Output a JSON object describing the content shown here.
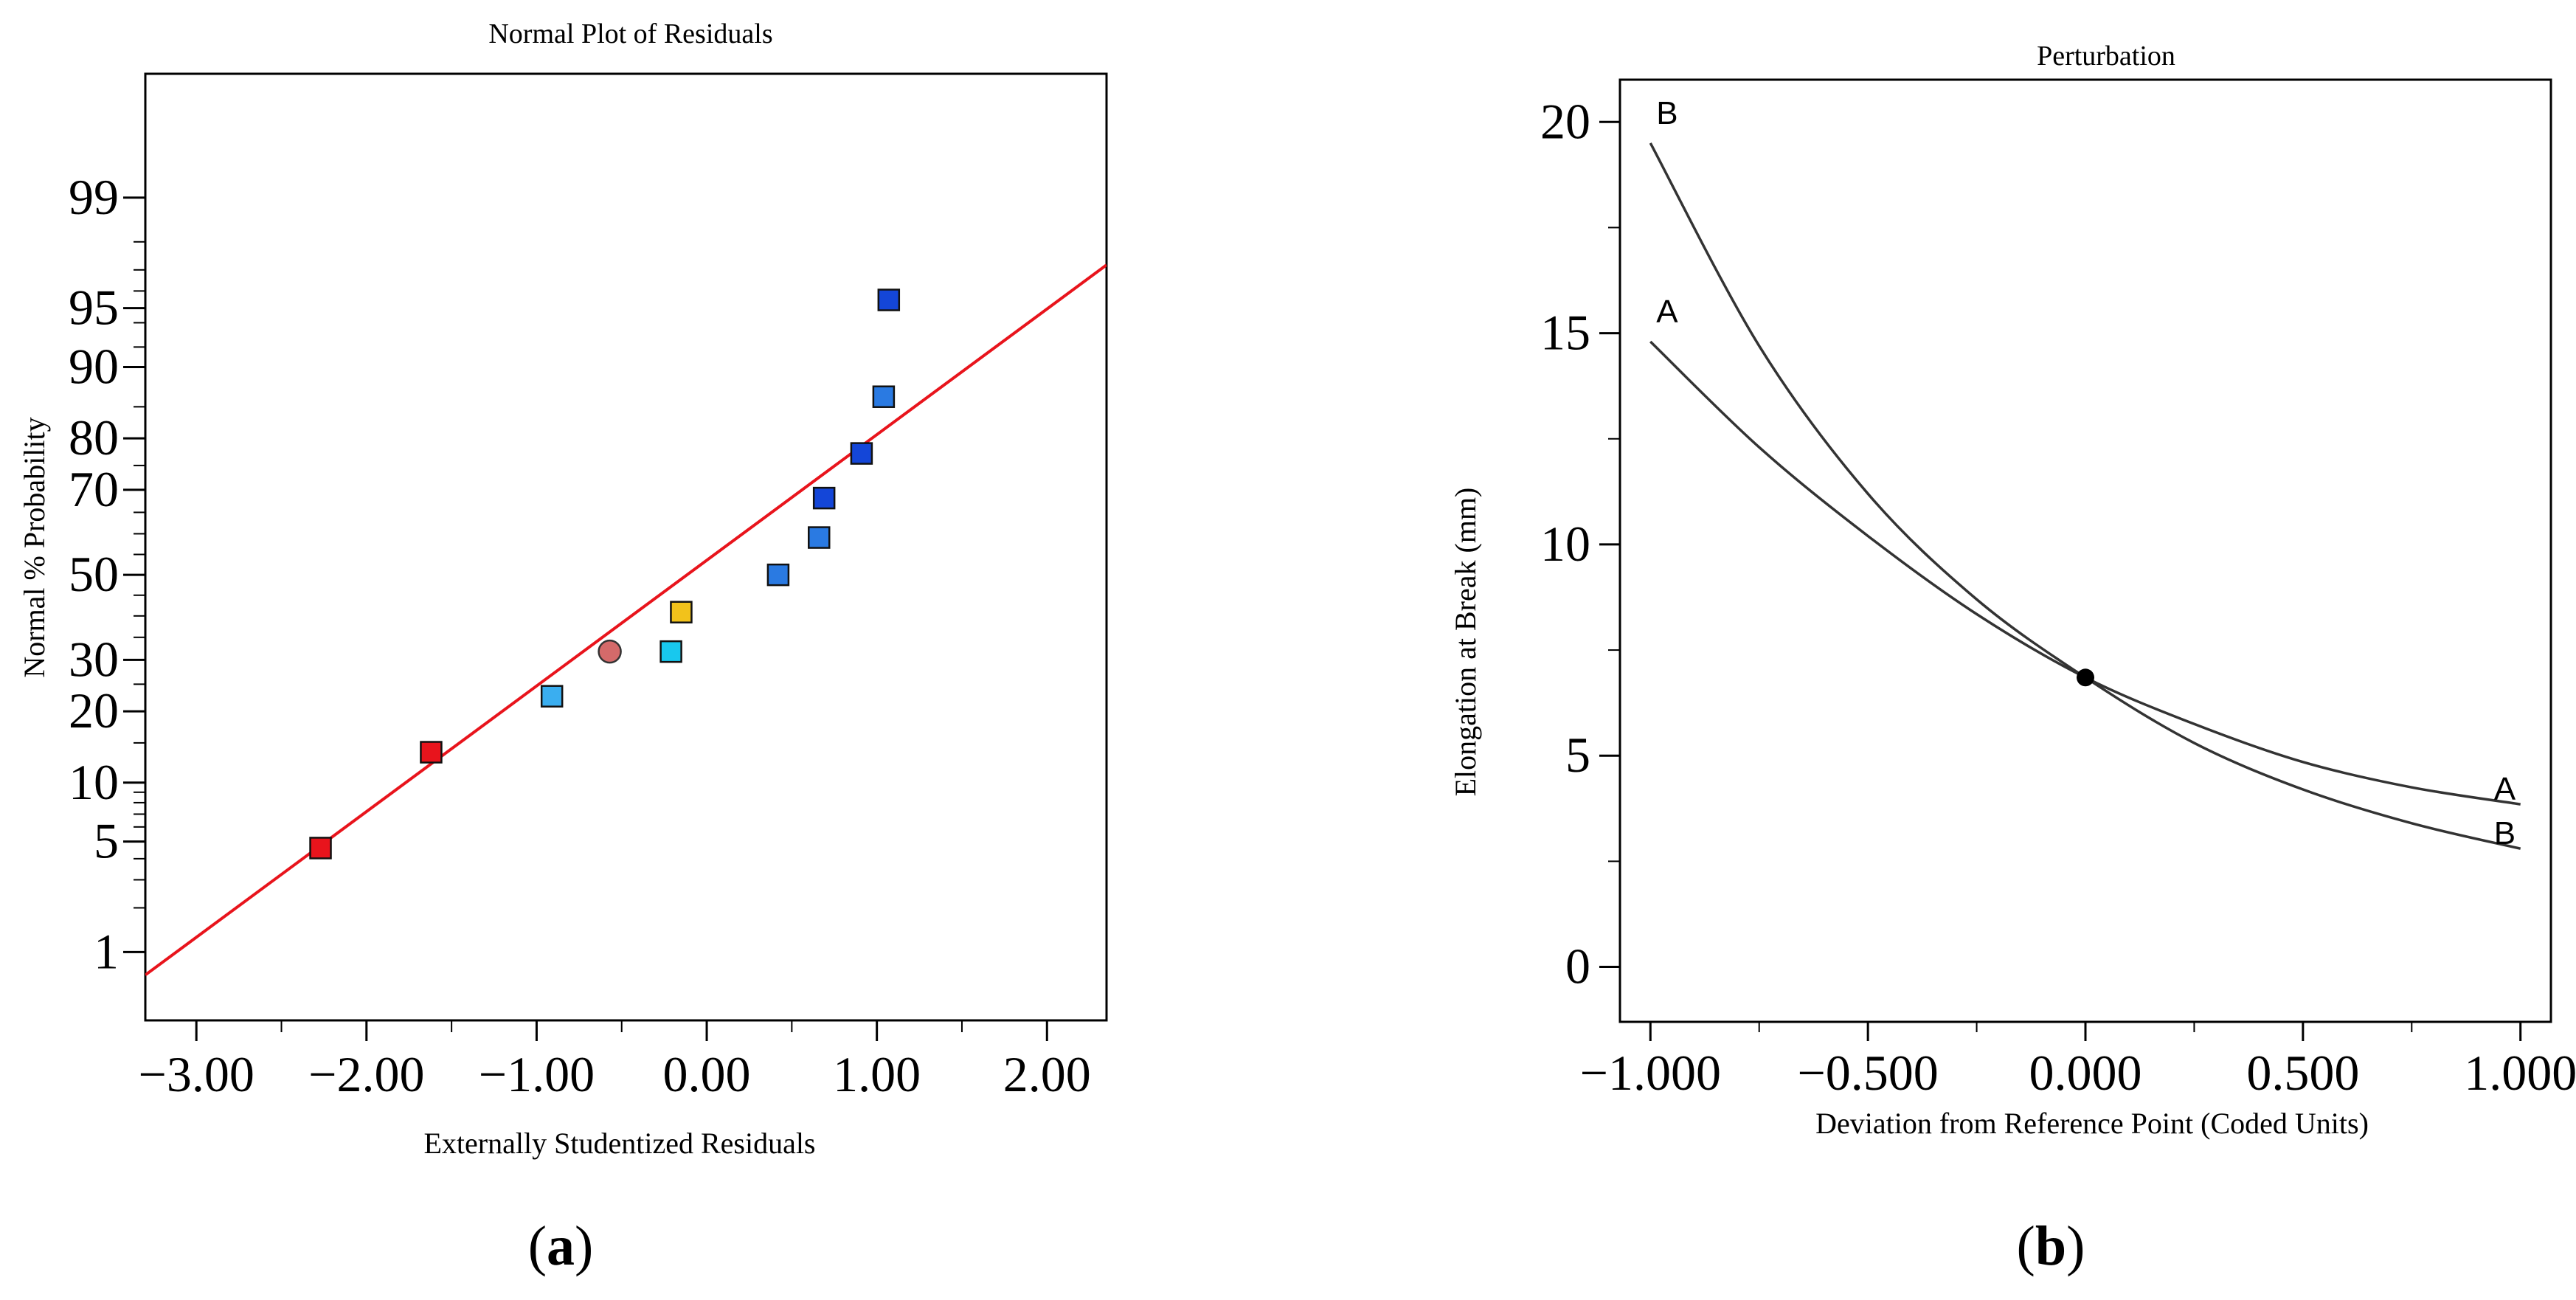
{
  "chart_data": [
    {
      "type": "scatter",
      "title": "Normal Plot of Residuals",
      "xlabel": "Externally Studentized Residuals",
      "ylabel": "Normal % Probability",
      "panel_label": "a",
      "xlim": [
        -3.3,
        2.35
      ],
      "x_ticks": [
        -3.0,
        -2.0,
        -1.0,
        0.0,
        1.0,
        2.0
      ],
      "x_tick_labels": [
        "−3.00",
        "−2.00",
        "−1.00",
        "0.00",
        "1.00",
        "2.00"
      ],
      "y_scale": "normal-probability",
      "ylim": [
        0.3,
        99.9
      ],
      "y_ticks": [
        1,
        5,
        10,
        20,
        30,
        50,
        70,
        80,
        90,
        95,
        99
      ],
      "y_tick_labels": [
        "1",
        "5",
        "10",
        "20",
        "30",
        "50",
        "70",
        "80",
        "90",
        "95",
        "99"
      ],
      "points": [
        {
          "x": -2.27,
          "y": 4.6,
          "color": "#e8141c",
          "shape": "square"
        },
        {
          "x": -1.62,
          "y": 13.7,
          "color": "#e8141c",
          "shape": "square"
        },
        {
          "x": -0.91,
          "y": 22.7,
          "color": "#3aaef0",
          "shape": "square"
        },
        {
          "x": -0.57,
          "y": 31.8,
          "color": "#d46a6a",
          "shape": "circle"
        },
        {
          "x": -0.21,
          "y": 31.8,
          "color": "#18c8ee",
          "shape": "square"
        },
        {
          "x": -0.15,
          "y": 40.9,
          "color": "#f2c21b",
          "shape": "square"
        },
        {
          "x": 0.42,
          "y": 50.0,
          "color": "#2a7ae2",
          "shape": "square"
        },
        {
          "x": 0.66,
          "y": 59.1,
          "color": "#2a7ae2",
          "shape": "square"
        },
        {
          "x": 0.69,
          "y": 68.2,
          "color": "#1446d8",
          "shape": "square"
        },
        {
          "x": 0.91,
          "y": 77.3,
          "color": "#1446d8",
          "shape": "square"
        },
        {
          "x": 1.04,
          "y": 86.4,
          "color": "#2a7ae2",
          "shape": "square"
        },
        {
          "x": 1.07,
          "y": 95.5,
          "color": "#1446d8",
          "shape": "square"
        }
      ],
      "fit_line": {
        "x": [
          -3.3,
          2.35
        ],
        "y": [
          0.68,
          97.2
        ],
        "color": "#e8141c"
      }
    },
    {
      "type": "line",
      "title": "Perturbation",
      "xlabel": "Deviation from Reference Point (Coded Units)",
      "ylabel": "Elongation at Break (mm)",
      "panel_label": "b",
      "xlim": [
        -1.07,
        1.07
      ],
      "ylim": [
        -1.3,
        21.0
      ],
      "x_ticks": [
        -1.0,
        -0.5,
        0.0,
        0.5,
        1.0
      ],
      "x_tick_labels": [
        "−1.000",
        "−0.500",
        "0.000",
        "0.500",
        "1.000"
      ],
      "y_ticks": [
        0,
        5,
        10,
        15,
        20
      ],
      "y_tick_labels": [
        "0",
        "5",
        "10",
        "15",
        "20"
      ],
      "series": [
        {
          "name": "A",
          "x": [
            -1.0,
            -0.75,
            -0.5,
            -0.25,
            0.0,
            0.25,
            0.5,
            0.75,
            1.0
          ],
          "y": [
            14.8,
            12.3,
            10.2,
            8.35,
            6.85,
            5.75,
            4.85,
            4.25,
            3.85
          ]
        },
        {
          "name": "B",
          "x": [
            -1.0,
            -0.75,
            -0.5,
            -0.25,
            0.0,
            0.25,
            0.5,
            0.75,
            1.0
          ],
          "y": [
            19.5,
            14.7,
            11.2,
            8.7,
            6.85,
            5.3,
            4.2,
            3.4,
            2.8
          ]
        }
      ],
      "reference_point": {
        "x": 0.0,
        "y": 6.85
      }
    }
  ]
}
